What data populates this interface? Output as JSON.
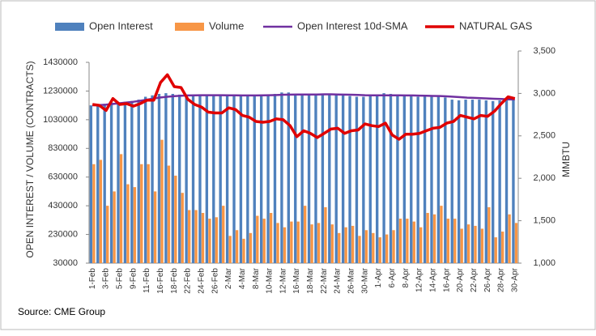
{
  "chart_data": {
    "type": "bar_line",
    "y_label": "OPEN INTEREST / VOLUME (CONTRACTS)",
    "y2_label": "MMBTU",
    "source": "Source: CME Group",
    "categories": [
      "1-Feb",
      null,
      "3-Feb",
      null,
      "5-Feb",
      null,
      "9-Feb",
      null,
      "11-Feb",
      null,
      "16-Feb",
      null,
      "18-Feb",
      null,
      "22-Feb",
      null,
      "24-Feb",
      null,
      "26-Feb",
      null,
      "2-Mar",
      null,
      "4-Mar",
      null,
      "8-Mar",
      null,
      "10-Mar",
      null,
      "12-Mar",
      null,
      "16-Mar",
      null,
      "18-Mar",
      null,
      "22-Mar",
      null,
      "24-Mar",
      null,
      "26-Mar",
      null,
      "30-Mar",
      null,
      "1-Apr",
      null,
      "6-Apr",
      null,
      "8-Apr",
      null,
      "12-Apr",
      null,
      "14-Apr",
      null,
      "16-Apr",
      null,
      "20-Apr",
      null,
      "22-Apr",
      null,
      "26-Apr",
      null,
      "28-Apr",
      null,
      "30-Apr"
    ],
    "ylim": [
      30000,
      1430000
    ],
    "yticks": [
      30000,
      230000,
      430000,
      630000,
      830000,
      1030000,
      1230000,
      1430000
    ],
    "y2lim": [
      1000,
      3500
    ],
    "y2ticks": [
      {
        "value": 1000,
        "label": "1,000"
      },
      {
        "value": 1500,
        "label": "1,500"
      },
      {
        "value": 2000,
        "label": "2,000"
      },
      {
        "value": 2500,
        "label": "2,500"
      },
      {
        "value": 3000,
        "label": "3,000"
      },
      {
        "value": 3500,
        "label": "3,500"
      }
    ],
    "series": [
      {
        "name": "Open Interest",
        "kind": "bar",
        "color": "#4f81bd",
        "values": [
          1130000,
          1125000,
          1140000,
          1150000,
          1150000,
          1155000,
          1160000,
          1170000,
          1190000,
          1200000,
          1210000,
          1215000,
          1210000,
          1205000,
          1200000,
          1195000,
          1200000,
          1200000,
          1200000,
          1200000,
          1200000,
          1200000,
          1195000,
          1195000,
          1200000,
          1200000,
          1205000,
          1210000,
          1220000,
          1220000,
          1210000,
          1205000,
          1200000,
          1205000,
          1210000,
          1210000,
          1205000,
          1200000,
          1195000,
          1190000,
          1190000,
          1195000,
          1200000,
          1215000,
          1210000,
          1200000,
          1195000,
          1195000,
          1190000,
          1195000,
          1190000,
          1190000,
          1185000,
          1170000,
          1165000,
          1170000,
          1170000,
          1170000,
          1165000,
          1160000,
          1165000,
          1165000,
          1170000
        ]
      },
      {
        "name": "Volume",
        "kind": "bar",
        "color": "#f79646",
        "values": [
          720000,
          750000,
          430000,
          530000,
          790000,
          580000,
          560000,
          720000,
          720000,
          530000,
          890000,
          710000,
          640000,
          520000,
          400000,
          400000,
          380000,
          340000,
          350000,
          430000,
          220000,
          260000,
          200000,
          240000,
          360000,
          340000,
          380000,
          310000,
          280000,
          320000,
          320000,
          430000,
          300000,
          310000,
          420000,
          300000,
          240000,
          280000,
          290000,
          220000,
          260000,
          240000,
          210000,
          230000,
          260000,
          340000,
          340000,
          320000,
          280000,
          380000,
          370000,
          430000,
          340000,
          340000,
          270000,
          300000,
          290000,
          270000,
          420000,
          210000,
          250000,
          370000,
          310000
        ]
      },
      {
        "name": "Open Interest 10d-SMA",
        "kind": "line",
        "color": "#7030a0",
        "values": [
          1130000,
          1132000,
          1135000,
          1140000,
          1145000,
          1150000,
          1155000,
          1162000,
          1170000,
          1178000,
          1185000,
          1190000,
          1194000,
          1197000,
          1199000,
          1200000,
          1201000,
          1201000,
          1201000,
          1201000,
          1200000,
          1200000,
          1199000,
          1199000,
          1199000,
          1200000,
          1201000,
          1202000,
          1204000,
          1205000,
          1206000,
          1206000,
          1206000,
          1206000,
          1207000,
          1207000,
          1206000,
          1205000,
          1204000,
          1203000,
          1201000,
          1200000,
          1200000,
          1200000,
          1200000,
          1200000,
          1199000,
          1199000,
          1198000,
          1197000,
          1196000,
          1195000,
          1193000,
          1190000,
          1187000,
          1184000,
          1182000,
          1180000,
          1178000,
          1176000,
          1174000,
          1172000,
          1171000
        ]
      },
      {
        "name": "NATURAL GAS",
        "kind": "line",
        "axis": "y2",
        "color": "#e00000",
        "values": [
          2870,
          2860,
          2800,
          2940,
          2870,
          2880,
          2850,
          2880,
          2920,
          2920,
          3130,
          3220,
          3080,
          3070,
          2930,
          2870,
          2840,
          2780,
          2770,
          2770,
          2830,
          2810,
          2740,
          2720,
          2670,
          2660,
          2670,
          2700,
          2690,
          2620,
          2490,
          2560,
          2530,
          2480,
          2530,
          2580,
          2590,
          2530,
          2560,
          2570,
          2640,
          2620,
          2610,
          2650,
          2510,
          2460,
          2520,
          2520,
          2530,
          2560,
          2590,
          2600,
          2650,
          2670,
          2740,
          2720,
          2700,
          2740,
          2730,
          2790,
          2880,
          2960,
          2940
        ]
      }
    ]
  }
}
